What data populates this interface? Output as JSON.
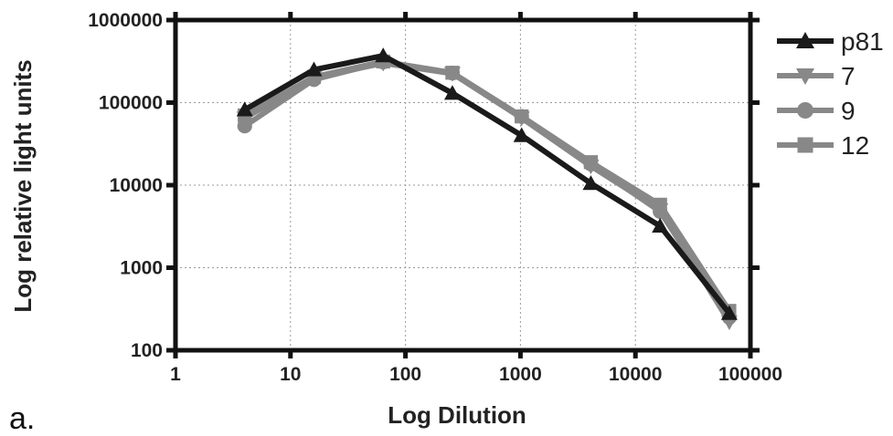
{
  "panel_label": "a.",
  "chart_data": {
    "type": "line",
    "xlabel": "Log Dilution",
    "ylabel": "Log relative light units",
    "x_scale": "log",
    "y_scale": "log",
    "xlim": [
      1,
      100000
    ],
    "ylim": [
      100,
      1000000
    ],
    "x_ticks": [
      1,
      10,
      100,
      1000,
      10000,
      100000
    ],
    "x_tick_labels": [
      "1",
      "10",
      "100",
      "1000",
      "10000",
      "100000"
    ],
    "y_ticks": [
      100,
      1000,
      10000,
      100000,
      1000000
    ],
    "y_tick_labels": [
      "100",
      "1000",
      "10000",
      "100000",
      "1000000"
    ],
    "grid": true,
    "legend_position": "right",
    "x": [
      4,
      16,
      64,
      256,
      1024,
      4096,
      16384,
      65536
    ],
    "series": [
      {
        "name": "p81",
        "color": "#1a1a1a",
        "marker": "triangle-up",
        "values": [
          82000,
          250000,
          370000,
          130000,
          40000,
          10500,
          3200,
          280
        ]
      },
      {
        "name": "7",
        "color": "#888888",
        "marker": "triangle-down",
        "values": [
          65000,
          200000,
          300000,
          225000,
          65000,
          17000,
          5000,
          220
        ]
      },
      {
        "name": "9",
        "color": "#888888",
        "marker": "circle",
        "values": [
          52000,
          190000,
          310000,
          228000,
          68000,
          18000,
          4800,
          250
        ]
      },
      {
        "name": "12",
        "color": "#888888",
        "marker": "square",
        "values": [
          70000,
          205000,
          315000,
          230000,
          68000,
          19000,
          5800,
          300
        ]
      }
    ]
  }
}
